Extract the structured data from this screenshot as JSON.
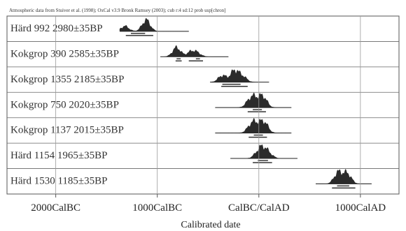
{
  "chart_data": {
    "type": "distribution",
    "caption": "Atmospheric data from Stuiver et al. (1998); OxCal v3.9 Bronk Ramsey (2003); cub r:4 sd:12 prob usp[chron]",
    "xlabel": "Calibrated date",
    "x_ticks": [
      {
        "value": -2000,
        "label": "2000CalBC"
      },
      {
        "value": -1000,
        "label": "1000CalBC"
      },
      {
        "value": 0,
        "label": "CalBC/CalAD"
      },
      {
        "value": 1000,
        "label": "1000CalAD"
      }
    ],
    "xlim": [
      -2480,
      1380
    ],
    "samples": [
      {
        "label": "Härd 992  2980±35BP",
        "peaks": [
          [
            -1320,
            25
          ],
          [
            -1110,
            55
          ]
        ],
        "range": [
          -1370,
          -690
        ],
        "ranges_68": [
          [
            -1260,
            -1120
          ]
        ],
        "ranges_95": [
          [
            -1310,
            -1040
          ]
        ]
      },
      {
        "label": "Kokgrop 390  2585±35BP",
        "peaks": [
          [
            -810,
            45
          ],
          [
            -670,
            22
          ],
          [
            -610,
            18
          ]
        ],
        "range": [
          -970,
          -300
        ],
        "ranges_68": [
          [
            -810,
            -770
          ],
          [
            -620,
            -580
          ]
        ],
        "ranges_95": [
          [
            -820,
            -760
          ],
          [
            -690,
            -550
          ]
        ]
      },
      {
        "label": "Kokgrop 1355  2185±35BP",
        "peaks": [
          [
            -360,
            35
          ],
          [
            -240,
            60
          ],
          [
            -160,
            30
          ]
        ],
        "range": [
          -480,
          100
        ],
        "ranges_68": [
          [
            -360,
            -180
          ]
        ],
        "ranges_95": [
          [
            -370,
            -110
          ]
        ]
      },
      {
        "label": "Kokgrop 750  2020±35BP",
        "peaks": [
          [
            -90,
            35
          ],
          [
            -40,
            40
          ],
          [
            40,
            60
          ]
        ],
        "range": [
          -430,
          320
        ],
        "ranges_68": [
          [
            -60,
            30
          ]
        ],
        "ranges_95": [
          [
            -110,
            70
          ]
        ]
      },
      {
        "label": "Kokgrop 1137  2015±35BP",
        "peaks": [
          [
            -80,
            35
          ],
          [
            -30,
            40
          ],
          [
            50,
            60
          ]
        ],
        "range": [
          -430,
          320
        ],
        "ranges_68": [
          [
            -50,
            40
          ]
        ],
        "ranges_95": [
          [
            -100,
            80
          ]
        ]
      },
      {
        "label": "Härd 1154  1965±35BP",
        "peaks": [
          [
            -10,
            35
          ],
          [
            40,
            60
          ],
          [
            100,
            30
          ]
        ],
        "range": [
          -280,
          380
        ],
        "ranges_68": [
          [
            -10,
            90
          ]
        ],
        "ranges_95": [
          [
            -60,
            130
          ]
        ]
      },
      {
        "label": "Härd 1530  1185±35BP",
        "peaks": [
          [
            780,
            60
          ],
          [
            870,
            55
          ]
        ],
        "range": [
          560,
          1110
        ],
        "ranges_68": [
          [
            770,
            890
          ]
        ],
        "ranges_95": [
          [
            720,
            950
          ]
        ]
      }
    ]
  }
}
